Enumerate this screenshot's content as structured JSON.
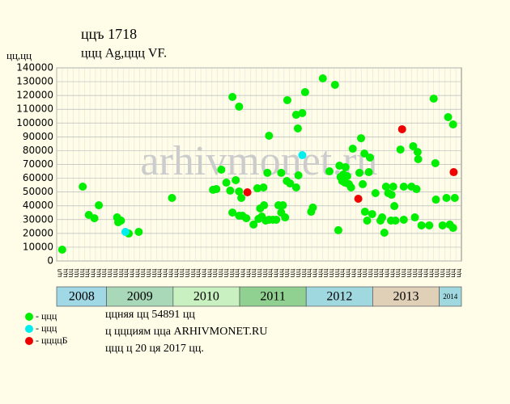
{
  "chart_data": {
    "type": "scatter",
    "title": "ццъ 1718",
    "subtitle": "ццц Ag,ццц VF.",
    "y_label": "цц,цц",
    "watermark": "arhivmonet.ru",
    "ylim": [
      0,
      140000
    ],
    "yticks": [
      0,
      10000,
      20000,
      30000,
      40000,
      50000,
      60000,
      70000,
      80000,
      90000,
      100000,
      110000,
      120000,
      130000,
      140000
    ],
    "xlim": [
      0,
      73
    ],
    "month_labels": [
      "цл",
      "цц",
      "цц",
      "цц",
      "цц",
      "цц",
      "цц",
      "цц",
      "цц",
      "цц",
      "цц",
      "цц",
      "цц",
      "цц",
      "цц",
      "цц",
      "цц",
      "цц",
      "цц",
      "цц",
      "цц",
      "цц",
      "цц",
      "цц",
      "цц",
      "цц",
      "цц",
      "цц",
      "цц",
      "цц",
      "цц",
      "цц",
      "цц",
      "цц",
      "цц",
      "цц",
      "цц",
      "цц",
      "цц",
      "цц",
      "цц",
      "цц",
      "цц",
      "цц",
      "цц",
      "цц",
      "цц",
      "цц",
      "цц",
      "цц",
      "цц",
      "цц",
      "цц",
      "цц",
      "цц",
      "цц",
      "цц",
      "цц",
      "цц",
      "цц",
      "цц",
      "цц",
      "цц",
      "цц",
      "цц",
      "цц",
      "цц",
      "цц",
      "цц",
      "цц",
      "цц",
      "цц",
      "цц"
    ],
    "years": [
      "2008",
      "2009",
      "2010",
      "2011",
      "2012",
      "2013",
      "2014"
    ],
    "grid": true,
    "series": [
      {
        "name": "- ццц",
        "color": "#00ee00",
        "x": [
          1.0,
          4.7,
          5.8,
          6.8,
          7.6,
          10.9,
          11.1,
          11.6,
          13.0,
          14.8,
          20.8,
          28.2,
          28.8,
          29.7,
          30.6,
          31.3,
          31.7,
          31.7,
          32.3,
          32.9,
          32.9,
          33.3,
          32.9,
          33.5,
          34.2,
          35.5,
          36.2,
          36.4,
          36.7,
          37.0,
          37.3,
          37.4,
          37.7,
          38.0,
          38.3,
          38.3,
          39.0,
          39.6,
          40.0,
          40.5,
          40.5,
          40.8,
          41.2,
          41.5,
          41.6,
          42.1,
          43.2,
          43.2,
          43.5,
          43.6,
          44.3,
          44.8,
          45.9,
          46.2,
          48.0,
          49.2,
          50.2,
          50.8,
          51.0,
          51.2,
          51.5,
          51.7,
          52.0,
          52.1,
          52.4,
          52.7,
          53.1,
          53.4,
          54.6,
          54.9,
          55.2,
          55.5,
          55.6,
          56.0,
          56.3,
          56.5,
          56.9,
          57.5,
          58.4,
          58.7,
          59.1,
          59.4,
          59.8,
          60.3,
          60.4,
          60.7,
          60.9,
          61.1,
          62.0,
          62.6,
          62.6,
          64.0,
          64.3,
          64.6,
          64.9,
          65.1,
          65.2,
          65.8,
          67.2,
          68.0,
          68.3,
          68.4,
          69.6,
          70.3,
          70.6,
          70.9,
          71.5,
          71.5,
          71.8
        ],
        "values": [
          8200,
          53900,
          33400,
          31000,
          40400,
          31600,
          28100,
          29300,
          19900,
          21100,
          45700,
          51600,
          52100,
          66200,
          56800,
          51000,
          118900,
          35100,
          58600,
          111900,
          50400,
          45700,
          32800,
          32800,
          31000,
          26400,
          52700,
          30500,
          38100,
          32200,
          53300,
          40400,
          29300,
          63900,
          90800,
          29900,
          29900,
          29900,
          40400,
          63900,
          35100,
          40400,
          31600,
          58000,
          116600,
          56200,
          53300,
          106000,
          96100,
          62100,
          107200,
          122400,
          35700,
          38700,
          132400,
          65000,
          127700,
          22300,
          69100,
          60900,
          58000,
          62700,
          56800,
          68000,
          61500,
          55700,
          53300,
          81400,
          63900,
          89000,
          55700,
          77900,
          35700,
          29300,
          64400,
          75000,
          34000,
          49200,
          29300,
          31600,
          20500,
          53900,
          49200,
          29300,
          48000,
          53900,
          39800,
          29300,
          80800,
          53900,
          29900,
          53900,
          83200,
          31600,
          52100,
          79000,
          73800,
          25800,
          25800,
          117700,
          70900,
          44500,
          25800,
          45700,
          104300,
          26400,
          99000,
          24000,
          45700
        ]
      },
      {
        "name": "- ццц",
        "color": "#00eeee",
        "x": [
          12.4,
          44.3
        ],
        "values": [
          21100,
          76700
        ]
      },
      {
        "name": "- ццццБ",
        "color": "#ee0000",
        "x": [
          34.4,
          54.4,
          62.3,
          71.6
        ],
        "values": [
          49800,
          45100,
          95500,
          64400
        ]
      }
    ],
    "notes": [
      "ццняя цц 54891 цц",
      "ц ццциям цца ARHIVMONET.RU",
      "ццц ц 20 ця 2017 цц."
    ]
  }
}
